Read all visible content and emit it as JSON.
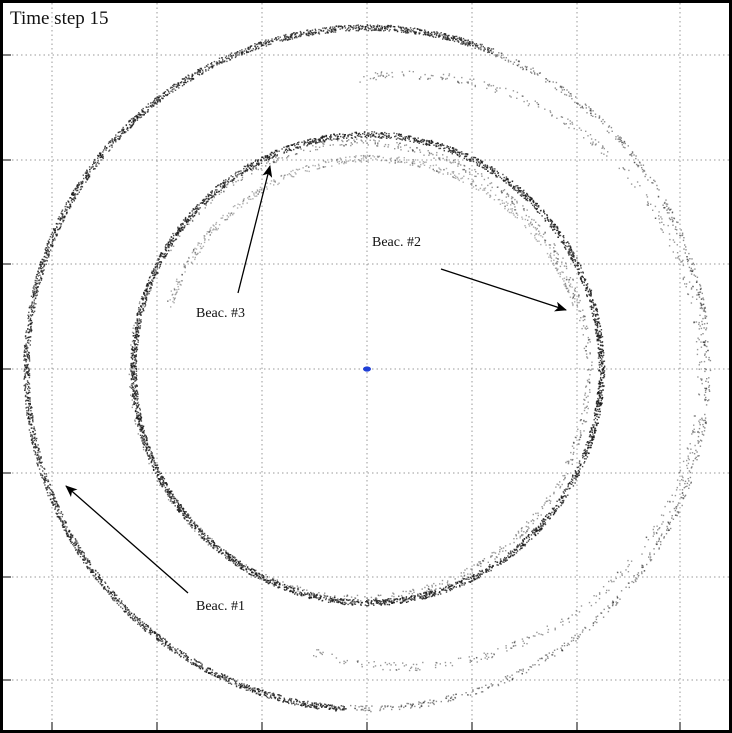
{
  "title": "Time step 15",
  "annotations": [
    {
      "id": "beacon-1",
      "label": "Beac. #1"
    },
    {
      "id": "beacon-2",
      "label": "Beac. #2"
    },
    {
      "id": "beacon-3",
      "label": "Beac. #3"
    }
  ],
  "colors": {
    "particles": "#1a1a1a",
    "robot_estimate": "#1f3fd6",
    "grid": "#9a9a9a",
    "frame": "#000000"
  }
}
